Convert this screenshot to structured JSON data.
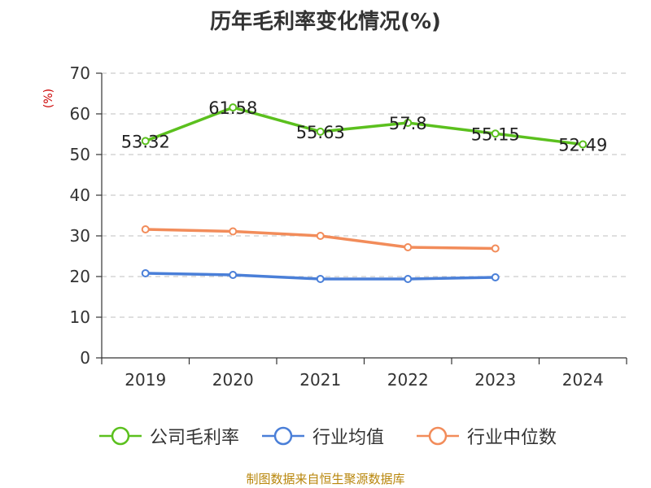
{
  "title": "历年毛利率变化情况(%)",
  "y_unit_label": "(%)",
  "source_note": "制图数据来自恒生聚源数据库",
  "chart_data": {
    "type": "line",
    "title": "历年毛利率变化情况(%)",
    "xlabel": "",
    "ylabel": "(%)",
    "categories": [
      "2019",
      "2020",
      "2021",
      "2022",
      "2023",
      "2024"
    ],
    "ylim": [
      0,
      70
    ],
    "yticks": [
      0,
      10,
      20,
      30,
      40,
      50,
      60,
      70
    ],
    "grid": true,
    "legend_position": "bottom",
    "series": [
      {
        "name": "公司毛利率",
        "color": "#5bc01e",
        "values": [
          53.32,
          61.58,
          55.63,
          57.8,
          55.15,
          52.49
        ],
        "labels": [
          "53.32",
          "61.58",
          "55.63",
          "57.8",
          "55.15",
          "52.49"
        ]
      },
      {
        "name": "行业均值",
        "color": "#4a7fd8",
        "values": [
          20.8,
          20.4,
          19.4,
          19.4,
          19.8,
          null
        ]
      },
      {
        "name": "行业中位数",
        "color": "#f28c5a",
        "values": [
          31.6,
          31.1,
          30.0,
          27.2,
          26.9,
          null
        ]
      }
    ]
  }
}
